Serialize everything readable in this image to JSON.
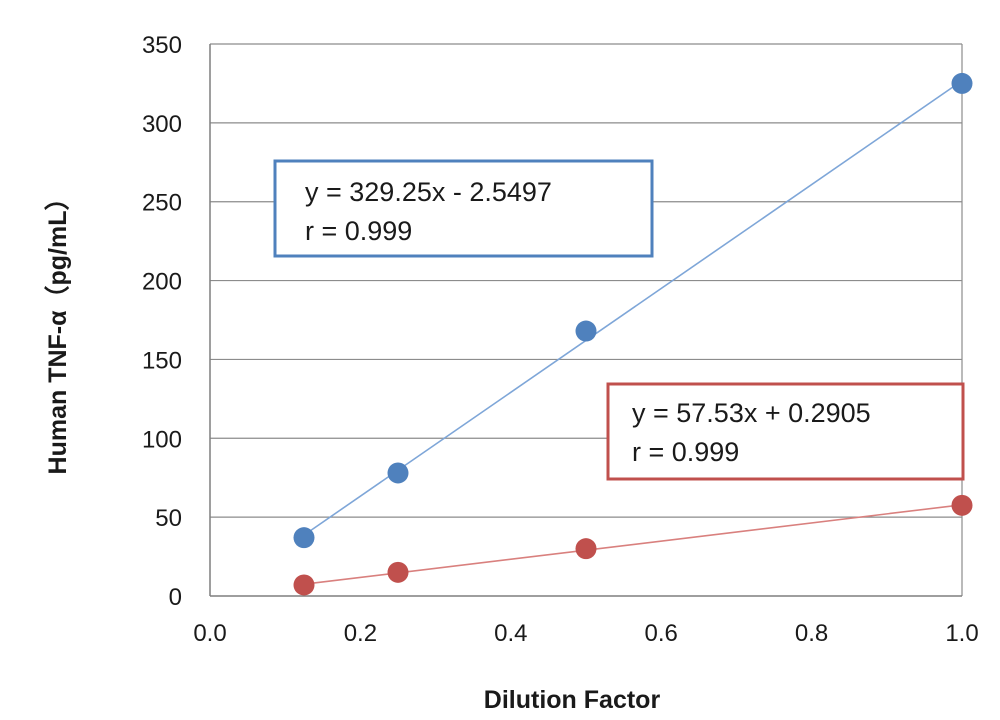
{
  "chart_data": {
    "type": "scatter",
    "title": "",
    "xlabel": "Dilution Factor",
    "ylabel": "Human TNF-α（pg/mL）",
    "xlim": [
      0,
      1.0
    ],
    "ylim": [
      0,
      350
    ],
    "x_ticks": [
      "0.0",
      "0.2",
      "0.4",
      "0.6",
      "0.8",
      "1.0"
    ],
    "y_ticks": [
      "0",
      "50",
      "100",
      "150",
      "200",
      "250",
      "300",
      "350"
    ],
    "grid": "horizontal",
    "series": [
      {
        "color": "#4f81bd",
        "line_color": "#7ea6d8",
        "x": [
          0.125,
          0.25,
          0.5,
          1.0
        ],
        "y": [
          37,
          78,
          168,
          325
        ],
        "trendline": {
          "slope": 329.25,
          "intercept": -2.5497
        },
        "annotation": {
          "equation": "y = 329.25x - 2.5497",
          "r": "r = 0.999"
        }
      },
      {
        "color": "#c0504d",
        "line_color": "#d9807e",
        "x": [
          0.125,
          0.25,
          0.5,
          1.0
        ],
        "y": [
          7,
          15,
          30,
          57.5
        ],
        "trendline": {
          "slope": 57.53,
          "intercept": 0.2905
        },
        "annotation": {
          "equation": "y = 57.53x + 0.2905",
          "r": "r = 0.999"
        }
      }
    ]
  }
}
